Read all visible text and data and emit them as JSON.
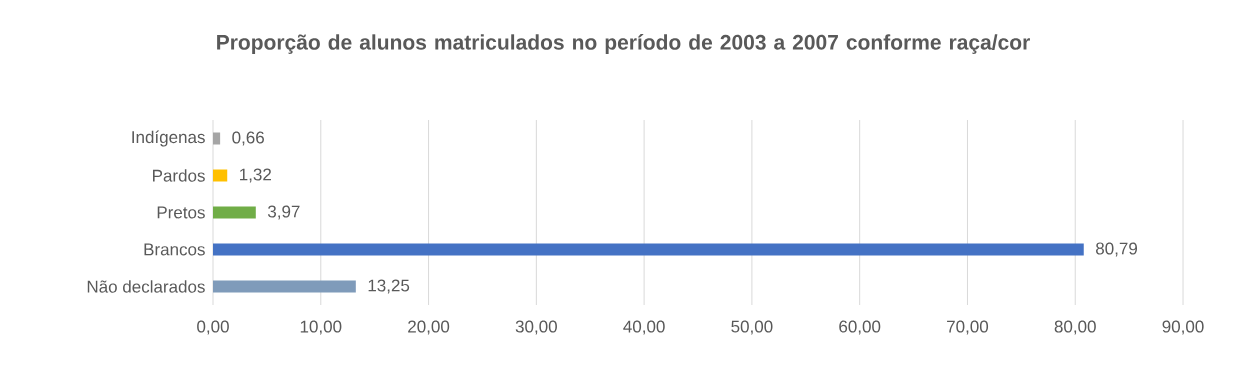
{
  "chart_data": {
    "type": "bar",
    "orientation": "horizontal",
    "title": "Proporção de alunos matriculados no período de 2003 a 2007 conforme raça/cor",
    "categories": [
      "Indígenas",
      "Pardos",
      "Pretos",
      "Brancos",
      "Não declarados"
    ],
    "values": [
      0.66,
      1.32,
      3.97,
      80.79,
      13.25
    ],
    "value_labels": [
      "0,66",
      "1,32",
      "3,97",
      "80,79",
      "13,25"
    ],
    "colors": [
      "#a5a5a5",
      "#ffc000",
      "#70ad47",
      "#4472c4",
      "#7f9bba"
    ],
    "xlim": [
      0,
      90
    ],
    "xticks": [
      {
        "value": 0,
        "label": "0,00"
      },
      {
        "value": 10,
        "label": "10,00"
      },
      {
        "value": 20,
        "label": "20,00"
      },
      {
        "value": 30,
        "label": "30,00"
      },
      {
        "value": 40,
        "label": "40,00"
      },
      {
        "value": 50,
        "label": "50,00"
      },
      {
        "value": 60,
        "label": "60,00"
      },
      {
        "value": 70,
        "label": "70,00"
      },
      {
        "value": 80,
        "label": "80,00"
      },
      {
        "value": 90,
        "label": "90,00"
      }
    ],
    "grid": "x"
  }
}
